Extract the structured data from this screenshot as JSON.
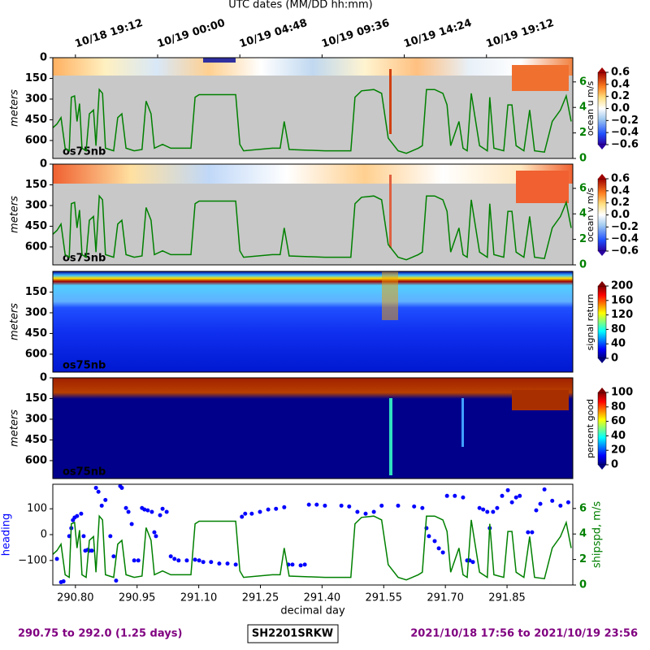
{
  "chart_data": [
    {
      "type": "heatmap",
      "label": "os75nb",
      "xlabel": "UTC dates (MM/DD hh:mm)",
      "xticks": [
        {
          "value": 290.8,
          "label": "10/18 19:12"
        },
        {
          "value": 291.0,
          "label": "10/19 00:00"
        },
        {
          "value": 291.2,
          "label": "10/19 04:48"
        },
        {
          "value": 291.4,
          "label": "10/19 09:36"
        },
        {
          "value": 291.6,
          "label": "10/19 14:24"
        },
        {
          "value": 291.8,
          "label": "10/19 19:12"
        }
      ],
      "ylabel": "meters",
      "ylim": [
        730,
        0
      ],
      "yticks": [
        0,
        150,
        300,
        450,
        600
      ],
      "y2lim": [
        0,
        7.9
      ],
      "y2ticks": [
        0,
        2,
        4,
        6
      ],
      "colorbar": {
        "label": "ocean u m/s",
        "clim": [
          -0.6,
          0.6
        ],
        "ticks": [
          0.6,
          0.4,
          0.2,
          {
            "value": 0,
            "label": "0.0"
          },
          {
            "value": -0.2,
            "label": "−0.2"
          },
          {
            "value": -0.4,
            "label": "−0.4"
          },
          {
            "value": -0.6,
            "label": "−0.6"
          }
        ]
      }
    },
    {
      "type": "heatmap",
      "label": "os75nb",
      "ylabel": "meters",
      "ylim": [
        730,
        0
      ],
      "yticks": [
        0,
        150,
        300,
        450,
        600
      ],
      "y2lim": [
        0,
        7.9
      ],
      "y2ticks": [
        0,
        2,
        4,
        6
      ],
      "colorbar": {
        "label": "ocean v m/s",
        "clim": [
          -0.6,
          0.6
        ],
        "ticks": [
          0.6,
          0.4,
          0.2,
          {
            "value": 0,
            "label": "0.0"
          },
          {
            "value": -0.2,
            "label": "−0.2"
          },
          {
            "value": -0.4,
            "label": "−0.4"
          },
          {
            "value": -0.6,
            "label": "−0.6"
          }
        ]
      }
    },
    {
      "type": "heatmap",
      "label": "os75nb",
      "ylabel": "meters",
      "ylim": [
        730,
        0
      ],
      "yticks": [
        150,
        300,
        450,
        600
      ],
      "colorbar": {
        "label": "signal return",
        "clim": [
          0,
          200
        ],
        "ticks": [
          0,
          40,
          80,
          120,
          160,
          200
        ]
      }
    },
    {
      "type": "heatmap",
      "label": "os75nb",
      "ylabel": "meters",
      "ylim": [
        730,
        0
      ],
      "yticks": [
        0,
        150,
        300,
        450,
        600
      ],
      "colorbar": {
        "label": "percent good",
        "clim": [
          0,
          100
        ],
        "ticks": [
          0,
          20,
          40,
          60,
          80,
          100
        ]
      }
    },
    {
      "type": "scatter",
      "xlabel": "decimal day",
      "xlim": [
        290.745,
        292.01
      ],
      "xticks": [
        {
          "value": 290.8,
          "label": "290.80"
        },
        {
          "value": 290.95,
          "label": "290.95"
        },
        {
          "value": 291.1,
          "label": "291.10"
        },
        {
          "value": 291.25,
          "label": "291.25"
        },
        {
          "value": 291.4,
          "label": "291.40"
        },
        {
          "value": 291.55,
          "label": "291.55"
        },
        {
          "value": 291.7,
          "label": "291.70"
        },
        {
          "value": 291.85,
          "label": "291.85"
        }
      ],
      "ylabel": "heading",
      "ylim": [
        -195,
        195
      ],
      "yticks": [
        {
          "value": -100,
          "label": "−100"
        },
        0,
        100
      ],
      "y2label": "shipspd, m/s",
      "y2lim": [
        0,
        7.9
      ],
      "y2ticks": [
        0,
        2,
        4,
        6
      ],
      "series": [
        {
          "color": "#0000ff",
          "x": [
            290.755,
            290.765,
            290.771,
            290.785,
            290.79,
            290.794,
            290.798,
            290.804,
            290.814,
            290.82,
            290.824,
            290.83,
            290.834,
            290.84,
            290.85,
            290.856,
            290.864,
            290.873,
            290.885,
            290.893,
            290.899,
            290.909,
            290.913,
            290.923,
            290.929,
            290.937,
            290.943,
            290.953,
            290.962,
            290.968,
            290.976,
            290.986,
            290.992,
            290.996,
            291.006,
            291.012,
            291.022,
            291.032,
            291.041,
            291.051,
            291.071,
            291.091,
            291.101,
            291.111,
            291.13,
            291.15,
            291.17,
            291.19,
            291.205,
            291.213,
            291.229,
            291.249,
            291.269,
            291.288,
            291.308,
            291.318,
            291.328,
            291.348,
            291.358,
            291.368,
            291.387,
            291.407,
            291.447,
            291.466,
            291.486,
            291.506,
            291.526,
            291.545,
            291.585,
            291.624,
            291.644,
            291.654,
            291.66,
            291.674,
            291.684,
            291.694,
            291.704,
            291.723,
            291.743,
            291.753,
            291.759,
            291.767,
            291.783,
            291.792,
            291.802,
            291.808,
            291.816,
            291.826,
            291.838,
            291.852,
            291.862,
            291.872,
            291.881,
            291.901,
            291.911,
            291.921,
            291.931,
            291.941,
            291.96,
            291.98,
            291.999
          ],
          "values": [
            -94,
            -184,
            -181,
            -6,
            25,
            56,
            66,
            72,
            81,
            -6,
            -62,
            -59,
            -62,
            -62,
            181,
            166,
            112,
            134,
            -6,
            -84,
            -178,
            188,
            181,
            103,
            88,
            41,
            -100,
            -100,
            103,
            97,
            94,
            88,
            9,
            -6,
            75,
            100,
            88,
            -84,
            -94,
            -100,
            -100,
            -97,
            -100,
            -106,
            -106,
            -112,
            -112,
            -116,
            69,
            81,
            81,
            88,
            97,
            100,
            106,
            -116,
            -116,
            -119,
            -116,
            116,
            116,
            112,
            112,
            109,
            88,
            81,
            88,
            112,
            112,
            109,
            103,
            25,
            -6,
            -25,
            -53,
            -69,
            150,
            150,
            144,
            -100,
            -100,
            -106,
            103,
            97,
            88,
            25,
            88,
            103,
            150,
            172,
            125,
            144,
            150,
            9,
            9,
            94,
            119,
            175,
            131,
            112,
            125
          ]
        },
        {
          "color": "#008000",
          "axis": "y2",
          "x": [
            290.745,
            290.755,
            290.765,
            290.775,
            290.785,
            290.79,
            290.798,
            290.804,
            290.81,
            290.816,
            290.826,
            290.834,
            290.844,
            290.85,
            290.858,
            290.866,
            290.873,
            290.893,
            290.903,
            290.913,
            290.923,
            290.943,
            290.962,
            290.972,
            290.984,
            290.992,
            291.012,
            291.032,
            291.081,
            291.091,
            291.101,
            291.13,
            291.19,
            291.2,
            291.209,
            291.279,
            291.298,
            291.308,
            291.32,
            291.407,
            291.47,
            291.48,
            291.496,
            291.526,
            291.545,
            291.561,
            291.585,
            291.605,
            291.634,
            291.644,
            291.654,
            291.674,
            291.694,
            291.704,
            291.713,
            291.733,
            291.743,
            291.753,
            291.763,
            291.783,
            291.802,
            291.808,
            291.818,
            291.842,
            291.852,
            291.862,
            291.872,
            291.891,
            291.905,
            291.917,
            291.941,
            291.96,
            291.98,
            291.994,
            292.006
          ],
          "values": [
            2.4,
            2.7,
            3.2,
            0.8,
            0.6,
            4.8,
            4.9,
            2.9,
            4.3,
            0.8,
            0.6,
            3.5,
            3.8,
            1.0,
            5.4,
            5.1,
            0.8,
            0.6,
            3.2,
            3.5,
            0.8,
            0.6,
            0.7,
            4.5,
            3.5,
            0.8,
            1.1,
            0.8,
            0.8,
            4.8,
            5.0,
            5.0,
            5.0,
            1.1,
            0.6,
            0.8,
            0.8,
            2.9,
            0.7,
            0.6,
            0.6,
            4.8,
            5.3,
            5.4,
            5.1,
            1.6,
            0.6,
            0.4,
            0.8,
            1.0,
            5.4,
            5.4,
            5.1,
            4.2,
            1.0,
            2.9,
            0.8,
            0.6,
            5.1,
            1.0,
            0.6,
            4.8,
            0.8,
            0.6,
            4.2,
            4.2,
            1.0,
            0.6,
            3.8,
            0.6,
            0.5,
            2.9,
            3.8,
            4.9,
            2.9
          ]
        }
      ]
    }
  ],
  "footer": {
    "left": "290.75 to 292.0 (1.25 days)",
    "center": "SH2201SRKW",
    "right": "2021/10/18 17:56 to 2021/10/19 23:56"
  }
}
